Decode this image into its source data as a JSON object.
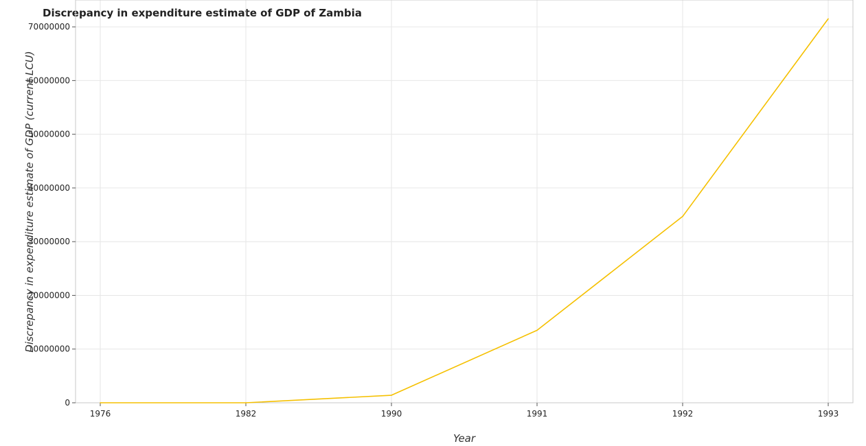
{
  "chart_data": {
    "type": "line",
    "title": "Discrepancy in expenditure estimate of GDP of Zambia",
    "xlabel": "Year",
    "ylabel": "Discrepancy in expenditure estimate of GDP (current LCU)",
    "categories": [
      "1976",
      "1982",
      "1990",
      "1991",
      "1992",
      "1993"
    ],
    "series": [
      {
        "color": "#f5c000",
        "values": [
          1000,
          300,
          1400000,
          13500000,
          34700000,
          71500000
        ]
      }
    ],
    "ylim": [
      0,
      75000000
    ],
    "yticks": [
      0,
      10000000,
      20000000,
      30000000,
      40000000,
      50000000,
      60000000,
      70000000
    ],
    "ytick_labels": [
      "0",
      "10000000",
      "20000000",
      "30000000",
      "40000000",
      "50000000",
      "60000000",
      "70000000"
    ],
    "grid": true,
    "legend": "none"
  }
}
